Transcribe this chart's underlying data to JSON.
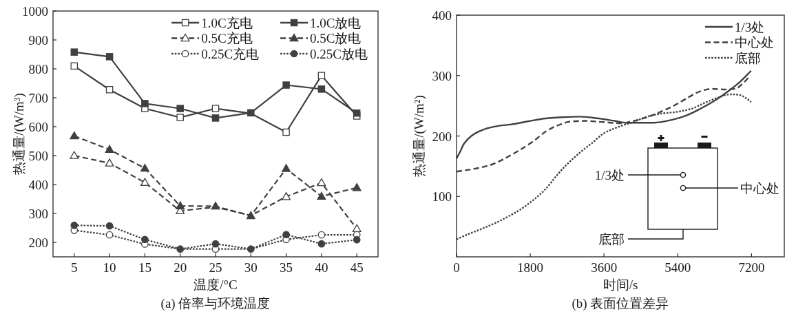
{
  "chart_data": [
    {
      "type": "line",
      "xlabel": "温度/°C",
      "ylabel": "热通量/(W/m³)",
      "annotations": [
        "(a) 倍率与环境温度"
      ],
      "x": [
        5,
        10,
        15,
        20,
        25,
        30,
        35,
        40,
        45
      ],
      "xlim": [
        2,
        48
      ],
      "xticks": [
        5,
        10,
        15,
        20,
        25,
        30,
        35,
        40,
        45
      ],
      "ylim": [
        150,
        1000
      ],
      "yticks": [
        200,
        300,
        400,
        500,
        600,
        700,
        800,
        900,
        1000
      ],
      "legend": "top right",
      "series": [
        {
          "name": "1.0C充电",
          "color": "#404040",
          "line_style": "solid",
          "marker": "square",
          "values": [
            810,
            728,
            663,
            632,
            663,
            646,
            581,
            777,
            637
          ]
        },
        {
          "name": "1.0C放电",
          "color": "#404040",
          "line_style": "solid",
          "marker": "square",
          "values": [
            858,
            842,
            680,
            663,
            630,
            648,
            744,
            730,
            647
          ]
        },
        {
          "name": "0.5C充电",
          "color": "#404040",
          "line_style": "dashed",
          "marker": "triangle",
          "values": [
            500,
            474,
            407,
            309,
            322,
            293,
            358,
            406,
            247
          ]
        },
        {
          "name": "0.5C放电",
          "color": "#404040",
          "line_style": "dashed",
          "marker": "triangle",
          "values": [
            568,
            521,
            456,
            326,
            325,
            292,
            455,
            359,
            389
          ]
        },
        {
          "name": "0.25C充电",
          "color": "#404040",
          "line_style": "dotted",
          "marker": "circle",
          "values": [
            242,
            226,
            194,
            177,
            177,
            177,
            210,
            226,
            226
          ]
        },
        {
          "name": "0.25C放电",
          "color": "#404040",
          "line_style": "dotted",
          "marker": "circle",
          "values": [
            259,
            257,
            210,
            177,
            195,
            177,
            227,
            195,
            209
          ]
        }
      ]
    },
    {
      "type": "line",
      "xlabel": "时间/s",
      "ylabel": "热通量/(W/m²)",
      "annotations": [
        "(b) 表面位置差异",
        "1/3处",
        "中心处",
        "底部"
      ],
      "xlim": [
        0,
        8000
      ],
      "xticks": [
        0,
        1800,
        3600,
        5400,
        7200
      ],
      "ylim": [
        0,
        400
      ],
      "yticks": [
        100,
        200,
        300,
        400
      ],
      "legend": "top right",
      "series": [
        {
          "name": "1/3处",
          "color": "#404040",
          "line_style": "solid",
          "x": [
            0,
            80,
            190,
            360,
            530,
            760,
            1040,
            1320,
            1800,
            2170,
            2560,
            3020,
            3470,
            3860,
            4150,
            4430,
            4820,
            5270,
            5610,
            5950,
            6290,
            6630,
            6910,
            7190
          ],
          "values": [
            163,
            173,
            188,
            200,
            207,
            213,
            217,
            219,
            225,
            229,
            231,
            232,
            229,
            225,
            222,
            222,
            222,
            227,
            234,
            245,
            258,
            274,
            289,
            308
          ]
        },
        {
          "name": "中心处",
          "color": "#404040",
          "line_style": "dashed",
          "x": [
            0,
            190,
            530,
            870,
            1210,
            1550,
            1890,
            2170,
            2450,
            2790,
            3130,
            3580,
            4030,
            4260,
            4600,
            4940,
            5270,
            5610,
            5950,
            6230,
            6520,
            6800,
            7020,
            7170
          ],
          "values": [
            141,
            143,
            147,
            153,
            164,
            177,
            192,
            207,
            217,
            224,
            225,
            223,
            221,
            224,
            230,
            239,
            249,
            262,
            274,
            278,
            277,
            278,
            289,
            300
          ]
        },
        {
          "name": "底部",
          "color": "#404040",
          "line_style": "dotted",
          "x": [
            0,
            300,
            640,
            980,
            1320,
            1550,
            1800,
            2170,
            2450,
            2680,
            3020,
            3300,
            3610,
            4030,
            4310,
            4650,
            4990,
            5390,
            5730,
            6060,
            6400,
            6690,
            6910,
            7080,
            7190
          ],
          "values": [
            29,
            38,
            47,
            57,
            69,
            78,
            90,
            112,
            135,
            152,
            173,
            188,
            205,
            217,
            223,
            232,
            237,
            240,
            245,
            255,
            264,
            269,
            268,
            262,
            256
          ]
        }
      ]
    }
  ]
}
